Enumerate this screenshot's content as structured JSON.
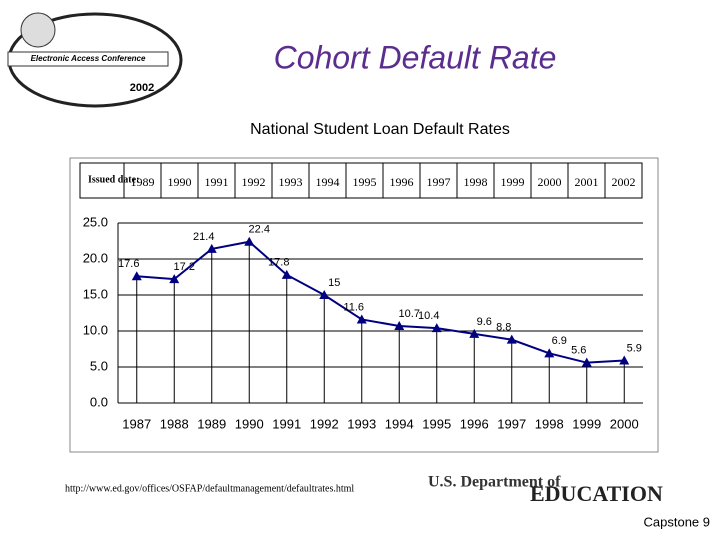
{
  "slide": {
    "title": "Cohort Default Rate",
    "logo_text": "Electronic Access Conference",
    "logo_year": "2002",
    "url": "http://www.ed.gov/offices/OSFAP/defaultmanagement/defaultrates.html",
    "dept_line1": "U.S. Department of",
    "dept_line2": "EDUCATION",
    "footer": "Capstone 9"
  },
  "chart_data": {
    "type": "line",
    "title": "National Student Loan Default Rates",
    "issued_label": "Issued date:",
    "issued_dates": [
      "1989",
      "1990",
      "1991",
      "1992",
      "1993",
      "1994",
      "1995",
      "1996",
      "1997",
      "1998",
      "1999",
      "2000",
      "2001",
      "2002"
    ],
    "categories": [
      "1987",
      "1988",
      "1989",
      "1990",
      "1991",
      "1992",
      "1993",
      "1994",
      "1995",
      "1996",
      "1997",
      "1998",
      "1999",
      "2000"
    ],
    "series": [
      {
        "name": "Default Rate",
        "color": "#000080",
        "values": [
          17.6,
          17.2,
          21.4,
          22.4,
          17.8,
          15,
          11.6,
          10.7,
          10.4,
          9.6,
          8.8,
          6.9,
          5.6,
          5.9
        ]
      }
    ],
    "ylim": [
      0,
      25
    ],
    "yticks": [
      {
        "value": 0,
        "label": "0.0"
      },
      {
        "value": 5,
        "label": "5.0"
      },
      {
        "value": 10,
        "label": "10.0"
      },
      {
        "value": 15,
        "label": "15.0"
      },
      {
        "value": 20,
        "label": "20.0"
      },
      {
        "value": 25,
        "label": "25.0"
      }
    ],
    "grid": true
  }
}
